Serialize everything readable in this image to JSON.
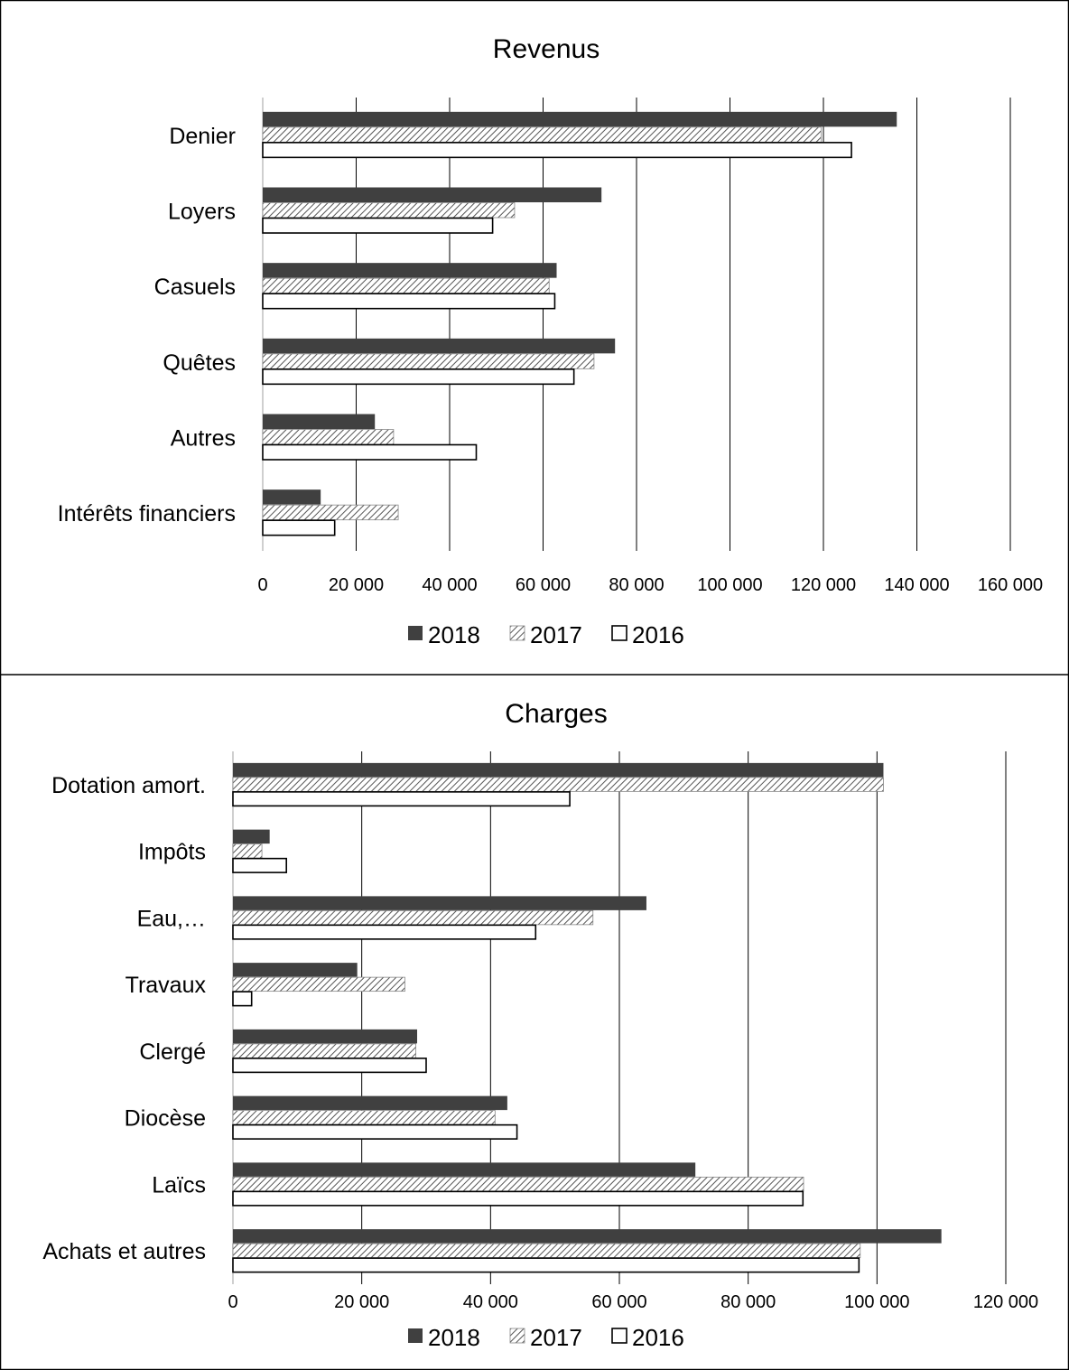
{
  "chart_data": [
    {
      "type": "bar",
      "orientation": "horizontal",
      "title": "Revenus",
      "categories": [
        "Denier",
        "Loyers",
        "Casuels",
        "Quêtes",
        "Autres",
        "Intérêts financiers"
      ],
      "series": [
        {
          "name": "2018",
          "values": [
            135700,
            72500,
            62900,
            75400,
            24000,
            12400
          ]
        },
        {
          "name": "2017",
          "values": [
            119500,
            53900,
            61300,
            70900,
            28000,
            29000
          ]
        },
        {
          "name": "2016",
          "values": [
            126000,
            49200,
            62500,
            66600,
            45700,
            15400
          ]
        }
      ],
      "xlim": [
        0,
        160000
      ],
      "xticks": [
        0,
        20000,
        40000,
        60000,
        80000,
        100000,
        120000,
        140000,
        160000
      ],
      "tick_labels": [
        "0",
        "20 000",
        "40 000",
        "60 000",
        "80 000",
        "100 000",
        "120 000",
        "140 000",
        "160 000"
      ],
      "grid": "vertical",
      "legend": "bottom",
      "series_style": {
        "2018": "#404040",
        "2017": "hatched",
        "2016": "#ffffff"
      }
    },
    {
      "type": "bar",
      "orientation": "horizontal",
      "title": "Charges",
      "categories": [
        "Dotation amort.",
        "Impôts",
        "Eau,…",
        "Travaux",
        "Clergé",
        "Diocèse",
        "Laïcs",
        "Achats et autres"
      ],
      "series": [
        {
          "name": "2018",
          "values": [
            101000,
            5700,
            64200,
            19300,
            28600,
            42600,
            71800,
            110000
          ]
        },
        {
          "name": "2017",
          "values": [
            101000,
            4500,
            55900,
            26700,
            28400,
            40700,
            88600,
            97400
          ]
        },
        {
          "name": "2016",
          "values": [
            52300,
            8300,
            47000,
            2900,
            30000,
            44100,
            88500,
            97200
          ]
        }
      ],
      "xlim": [
        0,
        120000
      ],
      "xticks": [
        0,
        20000,
        40000,
        60000,
        80000,
        100000,
        120000
      ],
      "tick_labels": [
        "0",
        "20 000",
        "40 000",
        "60 000",
        "80 000",
        "100 000",
        "120 000"
      ],
      "grid": "vertical",
      "legend": "bottom",
      "series_style": {
        "2018": "#404040",
        "2017": "hatched",
        "2016": "#ffffff"
      }
    }
  ]
}
